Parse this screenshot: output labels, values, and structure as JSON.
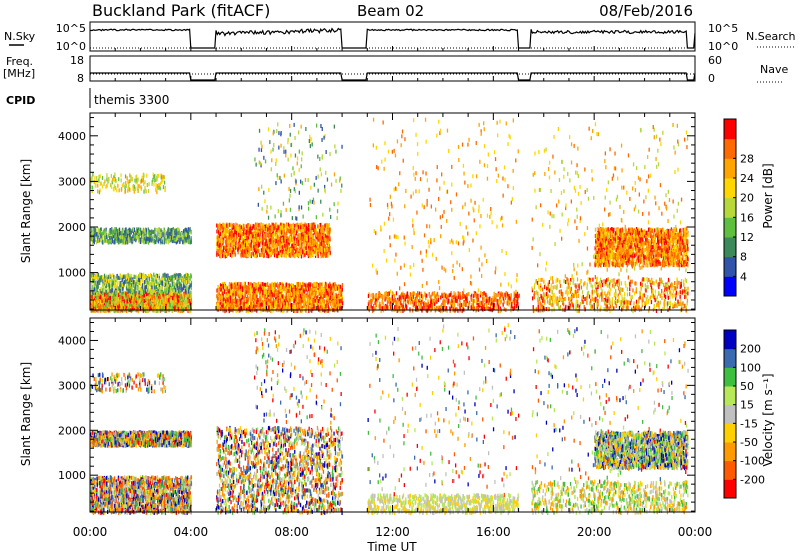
{
  "chart_data": {
    "type": "heatmap",
    "title": {
      "site": "Buckland Park (fitACF)",
      "beam": "Beam 02",
      "date": "08/Feb/2016"
    },
    "header_panels": {
      "sky_search": {
        "left_label": "N.Sky",
        "left_ticks": [
          "10^5",
          "10^0"
        ],
        "right_label": "N.Search",
        "right_ticks": [
          "10^5",
          "10^0"
        ]
      },
      "freq_nave": {
        "left_label_1": "Freq.",
        "left_label_2": "[MHz]",
        "left_ticks": [
          "18",
          "8"
        ],
        "right_label": "Nave",
        "right_ticks": [
          "60",
          "0"
        ]
      },
      "cpid": {
        "label": "CPID",
        "value": "themis 3300"
      }
    },
    "data_gaps_hours": [
      [
        4.0,
        5.0
      ],
      [
        10.0,
        11.0
      ],
      [
        17.0,
        17.5
      ],
      [
        23.7,
        24.0
      ]
    ],
    "xaxis": {
      "label": "Time UT",
      "ticks": [
        "00:00",
        "04:00",
        "08:00",
        "12:00",
        "16:00",
        "20:00",
        "00:00"
      ],
      "range_hours": [
        0,
        24
      ]
    },
    "yaxis": {
      "label": "Slant Range [km]",
      "ticks": [
        1000,
        2000,
        3000,
        4000
      ],
      "range_km": [
        180,
        4500
      ]
    },
    "panels": [
      {
        "quantity": "power",
        "colorbar_label": "Power [dB]",
        "colorbar_ticks": [
          "4",
          "8",
          "12",
          "16",
          "20",
          "24",
          "28"
        ],
        "colors": [
          "#0000ff",
          "#2f54a8",
          "#3c8a5a",
          "#5fbf3f",
          "#b6d83a",
          "#ffd700",
          "#ffa500",
          "#ff6a00",
          "#ff0000"
        ],
        "scatter_regions": [
          {
            "t": [
              0.0,
              4.0
            ],
            "r": [
              200,
              600
            ],
            "color_range": [
              3,
              8
            ],
            "density": "high"
          },
          {
            "t": [
              0.0,
              4.0
            ],
            "r": [
              600,
              1000
            ],
            "color_range": [
              1,
              5
            ],
            "density": "medium"
          },
          {
            "t": [
              0.0,
              4.0
            ],
            "r": [
              1700,
              2000
            ],
            "color_range": [
              1,
              4
            ],
            "density": "medium"
          },
          {
            "t": [
              0.0,
              3.0
            ],
            "r": [
              2800,
              3200
            ],
            "color_range": [
              3,
              6
            ],
            "density": "low"
          },
          {
            "t": [
              5.0,
              10.0
            ],
            "r": [
              200,
              800
            ],
            "color_range": [
              5,
              8
            ],
            "density": "high"
          },
          {
            "t": [
              5.0,
              9.5
            ],
            "r": [
              1400,
              2100
            ],
            "color_range": [
              5,
              8
            ],
            "density": "high"
          },
          {
            "t": [
              6.5,
              10.0
            ],
            "r": [
              2200,
              4300
            ],
            "color_range": [
              1,
              6
            ],
            "density": "low"
          },
          {
            "t": [
              11.0,
              17.0
            ],
            "r": [
              200,
              600
            ],
            "color_range": [
              6,
              8
            ],
            "density": "medium"
          },
          {
            "t": [
              11.0,
              17.0
            ],
            "r": [
              600,
              4400
            ],
            "color_range": [
              5,
              7
            ],
            "density": "sparse"
          },
          {
            "t": [
              17.5,
              23.7
            ],
            "r": [
              200,
              900
            ],
            "color_range": [
              4,
              8
            ],
            "density": "medium"
          },
          {
            "t": [
              20.0,
              23.7
            ],
            "r": [
              1200,
              2000
            ],
            "color_range": [
              5,
              8
            ],
            "density": "high"
          },
          {
            "t": [
              17.5,
              23.7
            ],
            "r": [
              900,
              4300
            ],
            "color_range": [
              4,
              7
            ],
            "density": "sparse"
          }
        ]
      },
      {
        "quantity": "velocity",
        "colorbar_label": "Velocity [m s⁻¹]",
        "colorbar_ticks": [
          "-200",
          "-100",
          "-50",
          "-15",
          "15",
          "50",
          "100",
          "200"
        ],
        "colors": [
          "#ff0000",
          "#ff5a00",
          "#ff9a00",
          "#ffd000",
          "#c0c0c0",
          "#b6e85a",
          "#3fbf3f",
          "#3a6ab0",
          "#0000c0"
        ],
        "scatter_regions": [
          {
            "t": [
              0.0,
              4.0
            ],
            "r": [
              200,
              1000
            ],
            "color_range": [
              0,
              8
            ],
            "density": "high"
          },
          {
            "t": [
              0.0,
              4.0
            ],
            "r": [
              1700,
              2000
            ],
            "color_range": [
              0,
              8
            ],
            "density": "high"
          },
          {
            "t": [
              0.0,
              3.0
            ],
            "r": [
              2900,
              3300
            ],
            "color_range": [
              0,
              8
            ],
            "density": "low"
          },
          {
            "t": [
              5.0,
              10.0
            ],
            "r": [
              200,
              2100
            ],
            "color_range": [
              0,
              8
            ],
            "density": "high"
          },
          {
            "t": [
              6.5,
              10.0
            ],
            "r": [
              2200,
              4300
            ],
            "color_range": [
              0,
              8
            ],
            "density": "low"
          },
          {
            "t": [
              11.0,
              17.0
            ],
            "r": [
              200,
              600
            ],
            "color_range": [
              3,
              5
            ],
            "density": "medium"
          },
          {
            "t": [
              11.0,
              17.0
            ],
            "r": [
              600,
              4400
            ],
            "color_range": [
              0,
              8
            ],
            "density": "sparse"
          },
          {
            "t": [
              17.5,
              23.7
            ],
            "r": [
              200,
              900
            ],
            "color_range": [
              2,
              6
            ],
            "density": "medium"
          },
          {
            "t": [
              20.0,
              23.7
            ],
            "r": [
              1200,
              2000
            ],
            "color_range": [
              2,
              8
            ],
            "density": "high"
          },
          {
            "t": [
              17.5,
              23.7
            ],
            "r": [
              900,
              4300
            ],
            "color_range": [
              0,
              8
            ],
            "density": "sparse"
          }
        ]
      }
    ]
  }
}
